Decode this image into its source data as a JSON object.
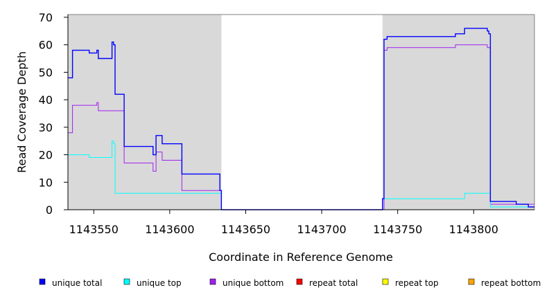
{
  "chart_data": {
    "type": "line",
    "title": "",
    "xlabel": "Coordinate in Reference Genome",
    "ylabel": "Read Coverage Depth",
    "xlim": [
      1143533,
      1143840
    ],
    "ylim": [
      0,
      71
    ],
    "x_ticks": [
      1143550,
      1143600,
      1143650,
      1143700,
      1143750,
      1143800
    ],
    "x_tick_labels": [
      "1143550",
      "1143600",
      "1143650",
      "1143700",
      "1143750",
      "1143800"
    ],
    "y_ticks": [
      0,
      10,
      20,
      30,
      40,
      50,
      60,
      70
    ],
    "y_tick_labels": [
      "0",
      "10",
      "20",
      "30",
      "40",
      "50",
      "60",
      "70"
    ],
    "shaded_regions": [
      {
        "x_start": 1143533,
        "x_end": 1143634,
        "color": "#d9d9d9"
      },
      {
        "x_start": 1143740,
        "x_end": 1143840,
        "color": "#d9d9d9"
      }
    ],
    "legend_position": "bottom",
    "series": [
      {
        "name": "unique total",
        "color": "#0000ff",
        "x": [
          1143533,
          1143535,
          1143535,
          1143536,
          1143536,
          1143547,
          1143547,
          1143552,
          1143552,
          1143553,
          1143553,
          1143562,
          1143562,
          1143563,
          1143563,
          1143564,
          1143564,
          1143570,
          1143570,
          1143589,
          1143589,
          1143591,
          1143591,
          1143595,
          1143595,
          1143608,
          1143608,
          1143633,
          1143633,
          1143634,
          1143634,
          1143740,
          1143740,
          1143741,
          1143741,
          1143743,
          1143743,
          1143788,
          1143788,
          1143794,
          1143794,
          1143809,
          1143809,
          1143810,
          1143810,
          1143811,
          1143811,
          1143828,
          1143828,
          1143836,
          1143836,
          1143840
        ],
        "y": [
          48,
          48,
          48,
          48,
          58,
          58,
          57,
          57,
          58,
          58,
          55,
          55,
          61,
          61,
          60,
          60,
          42,
          42,
          23,
          23,
          20,
          20,
          27,
          27,
          24,
          24,
          13,
          13,
          7,
          7,
          0,
          0,
          4,
          4,
          62,
          62,
          63,
          63,
          64,
          64,
          66,
          66,
          65,
          65,
          64,
          64,
          3,
          3,
          2,
          2,
          1,
          1
        ]
      },
      {
        "name": "unique top",
        "color": "#00ffff",
        "x": [
          1143533,
          1143547,
          1143547,
          1143562,
          1143562,
          1143563,
          1143563,
          1143564,
          1143564,
          1143633,
          1143633,
          1143634,
          1143634,
          1143740,
          1143740,
          1143741,
          1143741,
          1143794,
          1143794,
          1143811,
          1143811,
          1143840
        ],
        "y": [
          20,
          20,
          19,
          19,
          25,
          25,
          24,
          24,
          6,
          6,
          6,
          6,
          0,
          0,
          4,
          4,
          4,
          4,
          6,
          6,
          1,
          1
        ]
      },
      {
        "name": "unique bottom",
        "color": "#a020f0",
        "x": [
          1143533,
          1143536,
          1143536,
          1143552,
          1143552,
          1143553,
          1143553,
          1143570,
          1143570,
          1143589,
          1143589,
          1143591,
          1143591,
          1143595,
          1143595,
          1143608,
          1143608,
          1143634,
          1143634,
          1143741,
          1143741,
          1143743,
          1143743,
          1143788,
          1143788,
          1143809,
          1143809,
          1143811,
          1143811,
          1143840
        ],
        "y": [
          28,
          28,
          38,
          38,
          39,
          39,
          36,
          36,
          17,
          17,
          14,
          14,
          21,
          21,
          18,
          18,
          7,
          7,
          0,
          0,
          58,
          58,
          59,
          59,
          60,
          60,
          59,
          59,
          2,
          2
        ]
      },
      {
        "name": "repeat total",
        "color": "#ff0000",
        "x": [
          1143533,
          1143840
        ],
        "y": [
          0,
          0
        ]
      },
      {
        "name": "repeat top",
        "color": "#ffff00",
        "x": [
          1143533,
          1143840
        ],
        "y": [
          0,
          0
        ]
      },
      {
        "name": "repeat bottom",
        "color": "#ffa500",
        "x": [
          1143533,
          1143840
        ],
        "y": [
          0,
          0
        ]
      }
    ]
  }
}
